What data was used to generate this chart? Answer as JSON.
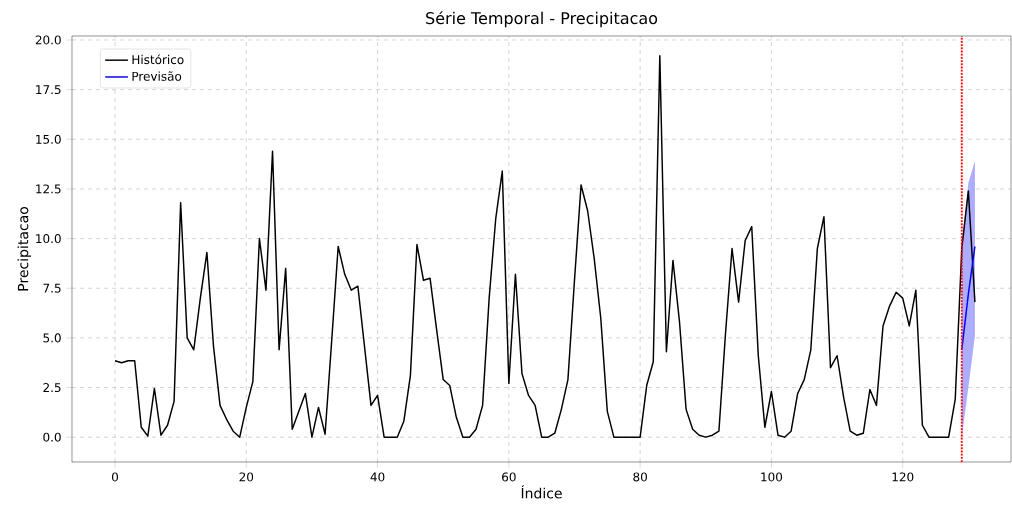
{
  "chart_data": {
    "type": "line",
    "title": "Série Temporal - Precipitacao",
    "xlabel": "Índice",
    "ylabel": "Precipitacao",
    "xlim": [
      -6.55,
      136.5
    ],
    "ylim": [
      -1.25,
      20.2
    ],
    "xticks": [
      0,
      20,
      40,
      60,
      80,
      100,
      120
    ],
    "yticks": [
      {
        "value": 0,
        "label": "0.0"
      },
      {
        "value": 2.5,
        "label": "2.5"
      },
      {
        "value": 5,
        "label": "5.0"
      },
      {
        "value": 7.5,
        "label": "7.5"
      },
      {
        "value": 10,
        "label": "10.0"
      },
      {
        "value": 12.5,
        "label": "12.5"
      },
      {
        "value": 15,
        "label": "15.0"
      },
      {
        "value": 17.5,
        "label": "17.5"
      },
      {
        "value": 20,
        "label": "20.0"
      }
    ],
    "grid": true,
    "legend": "top left",
    "ref_lines": [
      {
        "axis": "x",
        "value": 129,
        "color": "#ff0000",
        "line_style": "dotted"
      }
    ],
    "series": [
      {
        "name": "Histórico",
        "color": "#000000",
        "x": [
          0,
          1,
          2,
          3,
          4,
          5,
          6,
          7,
          8,
          9,
          10,
          11,
          12,
          13,
          14,
          15,
          16,
          17,
          18,
          19,
          20,
          21,
          22,
          23,
          24,
          25,
          26,
          27,
          28,
          29,
          30,
          31,
          32,
          33,
          34,
          35,
          36,
          37,
          38,
          39,
          40,
          41,
          42,
          43,
          44,
          45,
          46,
          47,
          48,
          49,
          50,
          51,
          52,
          53,
          54,
          55,
          56,
          57,
          58,
          59,
          60,
          61,
          62,
          63,
          64,
          65,
          66,
          67,
          68,
          69,
          70,
          71,
          72,
          73,
          74,
          75,
          76,
          77,
          78,
          79,
          80,
          81,
          82,
          83,
          84,
          85,
          86,
          87,
          88,
          89,
          90,
          91,
          92,
          93,
          94,
          95,
          96,
          97,
          98,
          99,
          100,
          101,
          102,
          103,
          104,
          105,
          106,
          107,
          108,
          109,
          110,
          111,
          112,
          113,
          114,
          115,
          116,
          117,
          118,
          119,
          120,
          121,
          122,
          123,
          124,
          125,
          126,
          127,
          128,
          129,
          130,
          131
        ],
        "values": [
          3.85,
          3.75,
          3.85,
          3.85,
          0.5,
          0.05,
          2.45,
          0.1,
          0.6,
          1.8,
          11.8,
          5.0,
          4.4,
          7.0,
          9.3,
          4.6,
          1.6,
          0.9,
          0.3,
          0.0,
          1.5,
          2.8,
          10.0,
          7.4,
          14.4,
          4.4,
          8.5,
          0.4,
          1.3,
          2.2,
          0.0,
          1.5,
          0.15,
          4.8,
          9.6,
          8.2,
          7.4,
          7.6,
          4.6,
          1.6,
          2.1,
          0.0,
          0.0,
          0.0,
          0.8,
          3.1,
          9.7,
          7.9,
          8.0,
          5.4,
          2.9,
          2.6,
          1.0,
          0.0,
          0.0,
          0.4,
          1.6,
          7.0,
          11.0,
          13.4,
          2.7,
          8.2,
          3.2,
          2.1,
          1.6,
          0.0,
          0.0,
          0.2,
          1.4,
          2.9,
          7.9,
          12.7,
          11.4,
          9.0,
          6.0,
          1.3,
          0.0,
          0.0,
          0.0,
          0.0,
          0.0,
          2.6,
          3.8,
          19.2,
          4.3,
          8.9,
          5.8,
          1.4,
          0.4,
          0.1,
          0.0,
          0.1,
          0.3,
          5.2,
          9.5,
          6.8,
          9.9,
          10.6,
          4.1,
          0.5,
          2.3,
          0.1,
          0.0,
          0.3,
          2.2,
          2.9,
          4.4,
          9.5,
          11.1,
          3.5,
          4.1,
          2.0,
          0.3,
          0.1,
          0.2,
          2.4,
          1.6,
          5.6,
          6.6,
          7.3,
          7.0,
          5.6,
          7.4,
          0.6,
          0.0,
          0.0,
          0.0,
          0.0,
          1.9,
          9.5,
          12.4,
          6.8
        ]
      },
      {
        "name": "Previsão",
        "color": "#0000ff",
        "x": [
          129,
          130,
          131
        ],
        "values": [
          4.4,
          7.2,
          9.6
        ],
        "lower": [
          0.0,
          2.5,
          5.1
        ],
        "upper": [
          9.8,
          12.8,
          13.9
        ]
      }
    ]
  }
}
